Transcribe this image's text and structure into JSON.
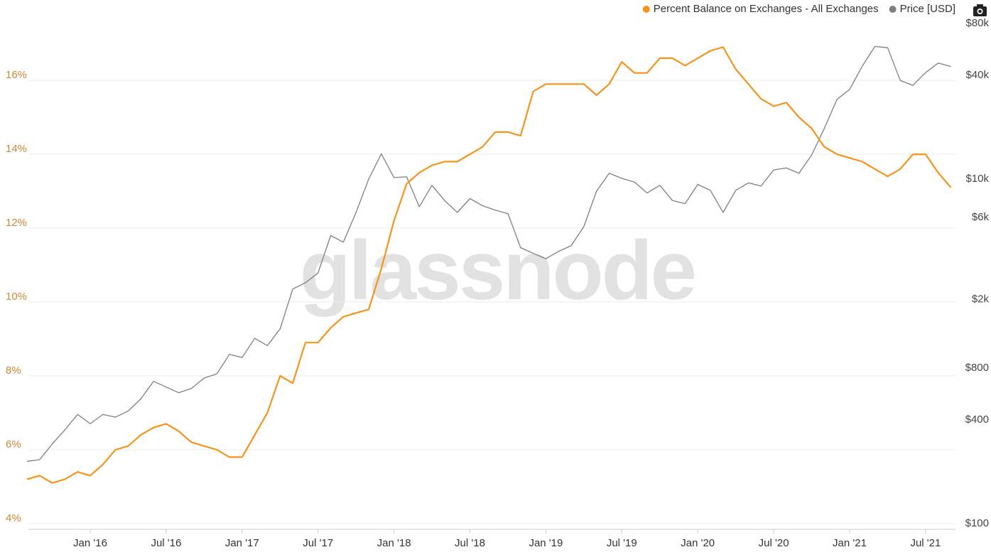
{
  "chart_data": {
    "type": "line",
    "watermark": "glassnode",
    "x": [
      "2015-08",
      "2015-09",
      "2015-10",
      "2015-11",
      "2015-12",
      "2016-01",
      "2016-02",
      "2016-03",
      "2016-04",
      "2016-05",
      "2016-06",
      "2016-07",
      "2016-08",
      "2016-09",
      "2016-10",
      "2016-11",
      "2016-12",
      "2017-01",
      "2017-02",
      "2017-03",
      "2017-04",
      "2017-05",
      "2017-06",
      "2017-07",
      "2017-08",
      "2017-09",
      "2017-10",
      "2017-11",
      "2017-12",
      "2018-01",
      "2018-02",
      "2018-03",
      "2018-04",
      "2018-05",
      "2018-06",
      "2018-07",
      "2018-08",
      "2018-09",
      "2018-10",
      "2018-11",
      "2018-12",
      "2019-01",
      "2019-02",
      "2019-03",
      "2019-04",
      "2019-05",
      "2019-06",
      "2019-07",
      "2019-08",
      "2019-09",
      "2019-10",
      "2019-11",
      "2019-12",
      "2020-01",
      "2020-02",
      "2020-03",
      "2020-04",
      "2020-05",
      "2020-06",
      "2020-07",
      "2020-08",
      "2020-09",
      "2020-10",
      "2020-11",
      "2020-12",
      "2021-01",
      "2021-02",
      "2021-03",
      "2021-04",
      "2021-05",
      "2021-06",
      "2021-07",
      "2021-08",
      "2021-09"
    ],
    "series": [
      {
        "name": "Percent Balance on Exchanges - All Exchanges",
        "color": "#f7931a",
        "axis": "y",
        "values": [
          5.2,
          5.3,
          5.1,
          5.2,
          5.4,
          5.3,
          5.6,
          6.0,
          6.1,
          6.4,
          6.6,
          6.7,
          6.5,
          6.2,
          6.1,
          6.0,
          5.8,
          5.8,
          6.4,
          7.0,
          8.0,
          7.8,
          8.9,
          8.9,
          9.3,
          9.6,
          9.7,
          9.8,
          10.9,
          12.2,
          13.2,
          13.5,
          13.7,
          13.8,
          13.8,
          14.0,
          14.2,
          14.6,
          14.6,
          14.5,
          15.7,
          15.9,
          15.9,
          15.9,
          15.9,
          15.6,
          15.9,
          16.5,
          16.2,
          16.2,
          16.6,
          16.6,
          16.4,
          16.6,
          16.8,
          16.9,
          16.3,
          15.9,
          15.5,
          15.3,
          15.4,
          15.0,
          14.7,
          14.2,
          14.0,
          13.9,
          13.8,
          13.6,
          13.4,
          13.6,
          14.0,
          14.0,
          13.5,
          13.1
        ]
      },
      {
        "name": "Price [USD]",
        "color": "#7f7f7f",
        "axis": "y2",
        "values": [
          230,
          235,
          290,
          350,
          430,
          380,
          430,
          415,
          450,
          530,
          670,
          620,
          575,
          610,
          700,
          740,
          960,
          920,
          1190,
          1080,
          1350,
          2300,
          2500,
          2850,
          4700,
          4300,
          6400,
          10000,
          14000,
          10200,
          10300,
          6900,
          9200,
          7500,
          6400,
          7700,
          7000,
          6600,
          6300,
          4000,
          3700,
          3450,
          3800,
          4100,
          5300,
          8500,
          10800,
          10100,
          9600,
          8300,
          9200,
          7500,
          7200,
          9300,
          8600,
          6400,
          8600,
          9500,
          9100,
          11300,
          11600,
          10800,
          13800,
          19700,
          29000,
          33100,
          45200,
          58800,
          57800,
          37300,
          35000,
          41500,
          47100,
          45000
        ]
      }
    ],
    "xticks": [
      {
        "value": "2016-01",
        "label": "Jan '16"
      },
      {
        "value": "2016-07",
        "label": "Jul '16"
      },
      {
        "value": "2017-01",
        "label": "Jan '17"
      },
      {
        "value": "2017-07",
        "label": "Jul '17"
      },
      {
        "value": "2018-01",
        "label": "Jan '18"
      },
      {
        "value": "2018-07",
        "label": "Jul '18"
      },
      {
        "value": "2019-01",
        "label": "Jan '19"
      },
      {
        "value": "2019-07",
        "label": "Jul '19"
      },
      {
        "value": "2020-01",
        "label": "Jan '20"
      },
      {
        "value": "2020-07",
        "label": "Jul '20"
      },
      {
        "value": "2021-01",
        "label": "Jan '21"
      },
      {
        "value": "2021-07",
        "label": "Jul '21"
      }
    ],
    "ylim": [
      4,
      17.54
    ],
    "yticks": [
      {
        "value": 4,
        "label": "4%"
      },
      {
        "value": 6,
        "label": "6%"
      },
      {
        "value": 8,
        "label": "8%"
      },
      {
        "value": 10,
        "label": "10%"
      },
      {
        "value": 12,
        "label": "12%"
      },
      {
        "value": 14,
        "label": "14%"
      },
      {
        "value": 16,
        "label": "16%"
      }
    ],
    "y2lim": [
      100,
      80000
    ],
    "y2log": true,
    "y2ticks": [
      {
        "value": 100,
        "label": "$100"
      },
      {
        "value": 400,
        "label": "$400"
      },
      {
        "value": 800,
        "label": "$800"
      },
      {
        "value": 2000,
        "label": "$2k"
      },
      {
        "value": 6000,
        "label": "$6k"
      },
      {
        "value": 10000,
        "label": "$10k"
      },
      {
        "value": 40000,
        "label": "$40k"
      },
      {
        "value": 80000,
        "label": "$80k"
      }
    ],
    "grid": true,
    "legend": "top-right"
  }
}
